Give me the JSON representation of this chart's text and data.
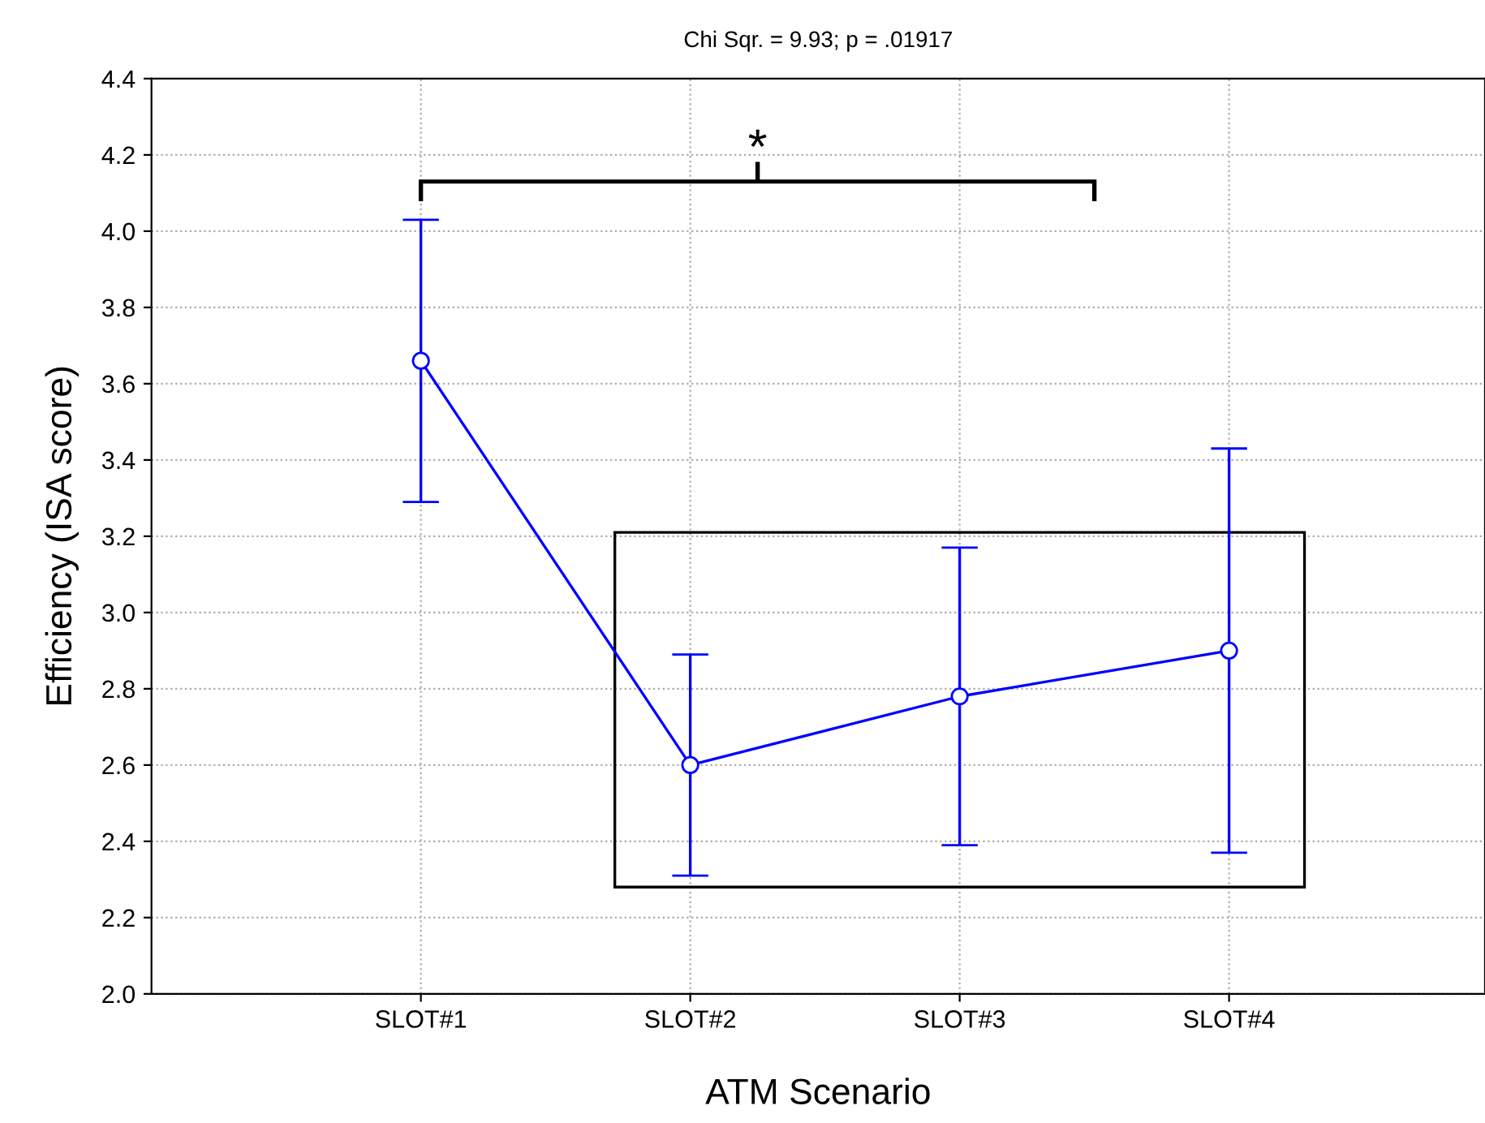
{
  "chart_data": {
    "type": "line",
    "title": "Chi Sqr. = 9.93; p = .01917",
    "xlabel": "ATM Scenario",
    "ylabel": "Efficiency (ISA score)",
    "categories": [
      "SLOT#1",
      "SLOT#2",
      "SLOT#3",
      "SLOT#4"
    ],
    "series": [
      {
        "color": "#0000ff",
        "values": [
          3.66,
          2.6,
          2.78,
          2.9
        ],
        "errors": [
          [
            3.29,
            4.03
          ],
          [
            2.31,
            2.89
          ],
          [
            2.39,
            3.17
          ],
          [
            2.37,
            3.43
          ]
        ]
      }
    ],
    "ylim": [
      2.0,
      4.4
    ],
    "yticks": [
      {
        "value": 2.0,
        "label": "2.0"
      },
      {
        "value": 2.2,
        "label": "2.2"
      },
      {
        "value": 2.4,
        "label": "2.4"
      },
      {
        "value": 2.6,
        "label": "2.6"
      },
      {
        "value": 2.8,
        "label": "2.8"
      },
      {
        "value": 3.0,
        "label": "3.0"
      },
      {
        "value": 3.2,
        "label": "3.2"
      },
      {
        "value": 3.4,
        "label": "3.4"
      },
      {
        "value": 3.6,
        "label": "3.6"
      },
      {
        "value": 3.8,
        "label": "3.8"
      },
      {
        "value": 4.0,
        "label": "4.0"
      },
      {
        "value": 4.2,
        "label": "4.2"
      },
      {
        "value": 4.4,
        "label": "4.4"
      }
    ],
    "grid": true,
    "marker": "circle",
    "line_style": "solid",
    "annotations": [
      "*"
    ]
  }
}
